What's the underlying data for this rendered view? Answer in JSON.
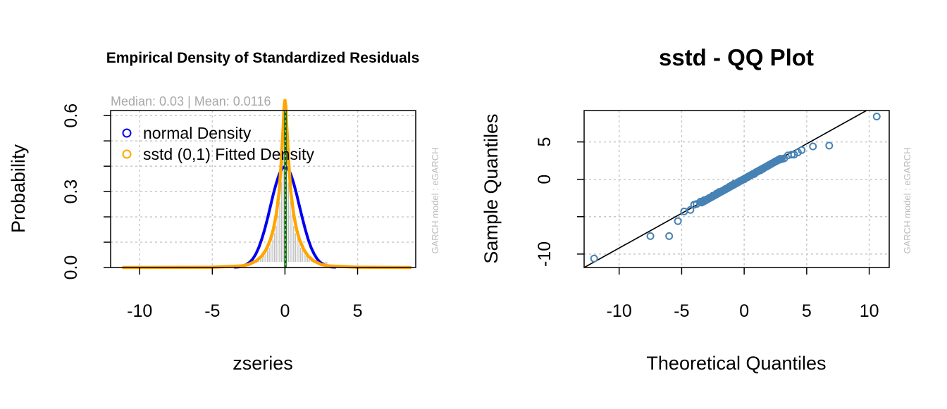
{
  "chart_data": [
    {
      "type": "line",
      "title": "Empirical Density of Standardized Residuals",
      "subtitle": "Median:  0.03 | Mean:  0.0116",
      "xlabel": "zseries",
      "ylabel": "Probability",
      "side_text": "GARCH model : eGARCH",
      "xlim": [
        -12,
        9
      ],
      "ylim": [
        0,
        0.62
      ],
      "xticks": [
        -10,
        -5,
        0,
        5
      ],
      "yticks": [
        0.0,
        0.3,
        0.6
      ],
      "ytick_labels": [
        "0.0",
        "0.3",
        "0.6"
      ],
      "grid": true,
      "legend_position": "top-left",
      "colors": {
        "normal": "#0000ee",
        "fitted": "#ffa500",
        "median": "#006400",
        "hist": "#bebebe"
      },
      "series": [
        {
          "name": "normal Density",
          "color": "#0000ee",
          "x": [
            -3.5,
            -3.2,
            -3.0,
            -2.8,
            -2.6,
            -2.4,
            -2.2,
            -2.0,
            -1.8,
            -1.6,
            -1.4,
            -1.2,
            -1.0,
            -0.8,
            -0.6,
            -0.4,
            -0.2,
            0.0,
            0.2,
            0.4,
            0.6,
            0.8,
            1.0,
            1.2,
            1.4,
            1.6,
            1.8,
            2.0,
            2.2,
            2.4,
            2.6,
            2.8,
            3.0,
            3.2,
            3.5
          ],
          "y": [
            0.001,
            0.002,
            0.004,
            0.008,
            0.014,
            0.022,
            0.035,
            0.054,
            0.079,
            0.111,
            0.15,
            0.194,
            0.242,
            0.29,
            0.333,
            0.368,
            0.391,
            0.399,
            0.391,
            0.368,
            0.333,
            0.29,
            0.242,
            0.194,
            0.15,
            0.111,
            0.079,
            0.054,
            0.035,
            0.022,
            0.014,
            0.008,
            0.004,
            0.002,
            0.001
          ]
        },
        {
          "name": "sstd (0,1) Fitted Density",
          "color": "#ffa500",
          "x": [
            -11.2,
            -5.0,
            -3.0,
            -2.5,
            -2.0,
            -1.6,
            -1.3,
            -1.0,
            -0.8,
            -0.6,
            -0.4,
            -0.25,
            -0.12,
            -0.05,
            0.0,
            0.05,
            0.12,
            0.25,
            0.4,
            0.6,
            0.8,
            1.0,
            1.3,
            1.6,
            2.0,
            2.5,
            3.0,
            5.0,
            8.7
          ],
          "y": [
            0.0,
            0.001,
            0.006,
            0.012,
            0.025,
            0.045,
            0.07,
            0.11,
            0.15,
            0.21,
            0.3,
            0.42,
            0.56,
            0.64,
            0.66,
            0.64,
            0.56,
            0.42,
            0.3,
            0.21,
            0.15,
            0.11,
            0.07,
            0.045,
            0.025,
            0.012,
            0.006,
            0.001,
            0.0
          ]
        }
      ],
      "median_x": 0.03
    },
    {
      "type": "scatter",
      "title": "sstd - QQ Plot",
      "xlabel": "Theoretical Quantiles",
      "ylabel": "Sample Quantiles",
      "side_text": "GARCH model : eGARCH",
      "xlim": [
        -12.8,
        11.6
      ],
      "ylim": [
        -11.8,
        9.2
      ],
      "xticks": [
        -10,
        -5,
        0,
        5,
        10
      ],
      "yticks": [
        -10,
        -5,
        0,
        5
      ],
      "ytick_labels": [
        "-10",
        "",
        "0",
        "5"
      ],
      "grid": true,
      "colors": {
        "points": "#4682b4",
        "line": "#000000"
      },
      "reference_line": {
        "slope": 0.93,
        "intercept": 0.1
      },
      "points": {
        "x": [
          -12.0,
          -7.5,
          -6.0,
          -5.3,
          -4.8,
          -4.3,
          -4.0,
          -3.8,
          -3.5,
          -3.2,
          -3.0,
          -2.8,
          -2.5,
          -2.2,
          -2.0,
          -1.8,
          -1.5,
          -1.2,
          -1.0,
          -0.8,
          -0.5,
          -0.3,
          0.0,
          0.3,
          0.5,
          0.8,
          1.0,
          1.3,
          1.5,
          1.8,
          2.0,
          2.2,
          2.5,
          2.8,
          3.0,
          3.2,
          3.5,
          3.8,
          4.0,
          4.3,
          4.6,
          5.5,
          6.8,
          10.6
        ],
        "y": [
          -10.6,
          -7.6,
          -7.6,
          -5.6,
          -4.3,
          -4.1,
          -3.4,
          -3.3,
          -3.0,
          -2.8,
          -2.7,
          -2.5,
          -2.2,
          -1.9,
          -1.7,
          -1.6,
          -1.3,
          -1.0,
          -0.8,
          -0.6,
          -0.4,
          -0.2,
          0.0,
          0.3,
          0.5,
          0.7,
          1.0,
          1.2,
          1.4,
          1.7,
          1.9,
          2.1,
          2.4,
          2.6,
          2.7,
          2.8,
          3.2,
          3.3,
          3.3,
          3.6,
          3.9,
          4.4,
          4.5,
          8.4
        ]
      }
    }
  ]
}
